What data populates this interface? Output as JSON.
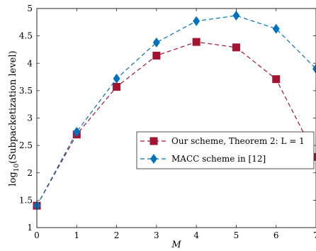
{
  "chart_data": {
    "type": "line",
    "xlabel": "M",
    "ylabel": "log10(Subpacketization level)",
    "xlim": [
      0,
      7
    ],
    "ylim": [
      1,
      5
    ],
    "x": [
      0,
      1,
      2,
      3,
      4,
      5,
      6,
      7
    ],
    "xticks": [
      "0",
      "1",
      "2",
      "3",
      "4",
      "5",
      "6",
      "7"
    ],
    "yticks": [
      "1",
      "1.5",
      "2",
      "2.5",
      "3",
      "3.5",
      "4",
      "4.5",
      "5"
    ],
    "ytick_values": [
      1,
      1.5,
      2,
      2.5,
      3,
      3.5,
      4,
      4.5,
      5
    ],
    "grid": false,
    "legend_position": "center-right",
    "series": [
      {
        "name": "Our scheme, Theorem 2: L = 1",
        "color": "#a2142f",
        "marker": "square",
        "line_style": "dashed",
        "values": [
          1.4,
          2.7,
          3.57,
          4.14,
          4.39,
          4.29,
          3.71,
          2.29
        ]
      },
      {
        "name": "MACC scheme in [12]",
        "color": "#0072bd",
        "marker": "diamond",
        "line_style": "dashed",
        "values": [
          1.4,
          2.75,
          3.72,
          4.38,
          4.77,
          4.87,
          4.63,
          3.9
        ]
      }
    ]
  }
}
